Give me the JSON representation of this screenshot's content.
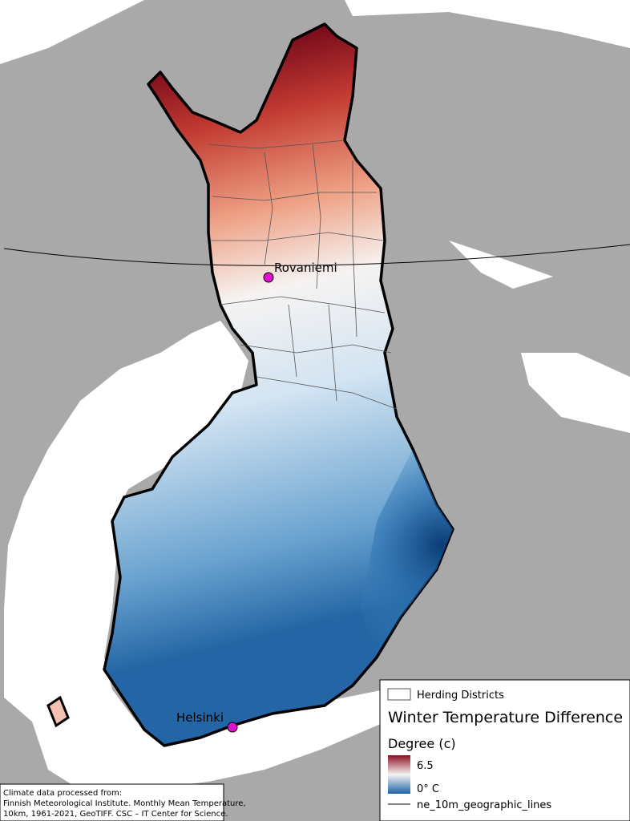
{
  "cities": [
    {
      "label": "Rovaniemi"
    },
    {
      "label": "Helsinki"
    }
  ],
  "legend": {
    "herding": "Herding Districts",
    "title": "Winter Temperature Difference",
    "subtitle": "Degree (c)",
    "max": "6.5",
    "min": "0° C",
    "lines": "ne_10m_geographic_lines"
  },
  "source": [
    "Climate data processed from:",
    "Finnish Meteorological Institute. Monthly Mean Temperature,",
    "10km, 1961-2021, GeoTIFF. CSC – IT Center for Science."
  ]
}
